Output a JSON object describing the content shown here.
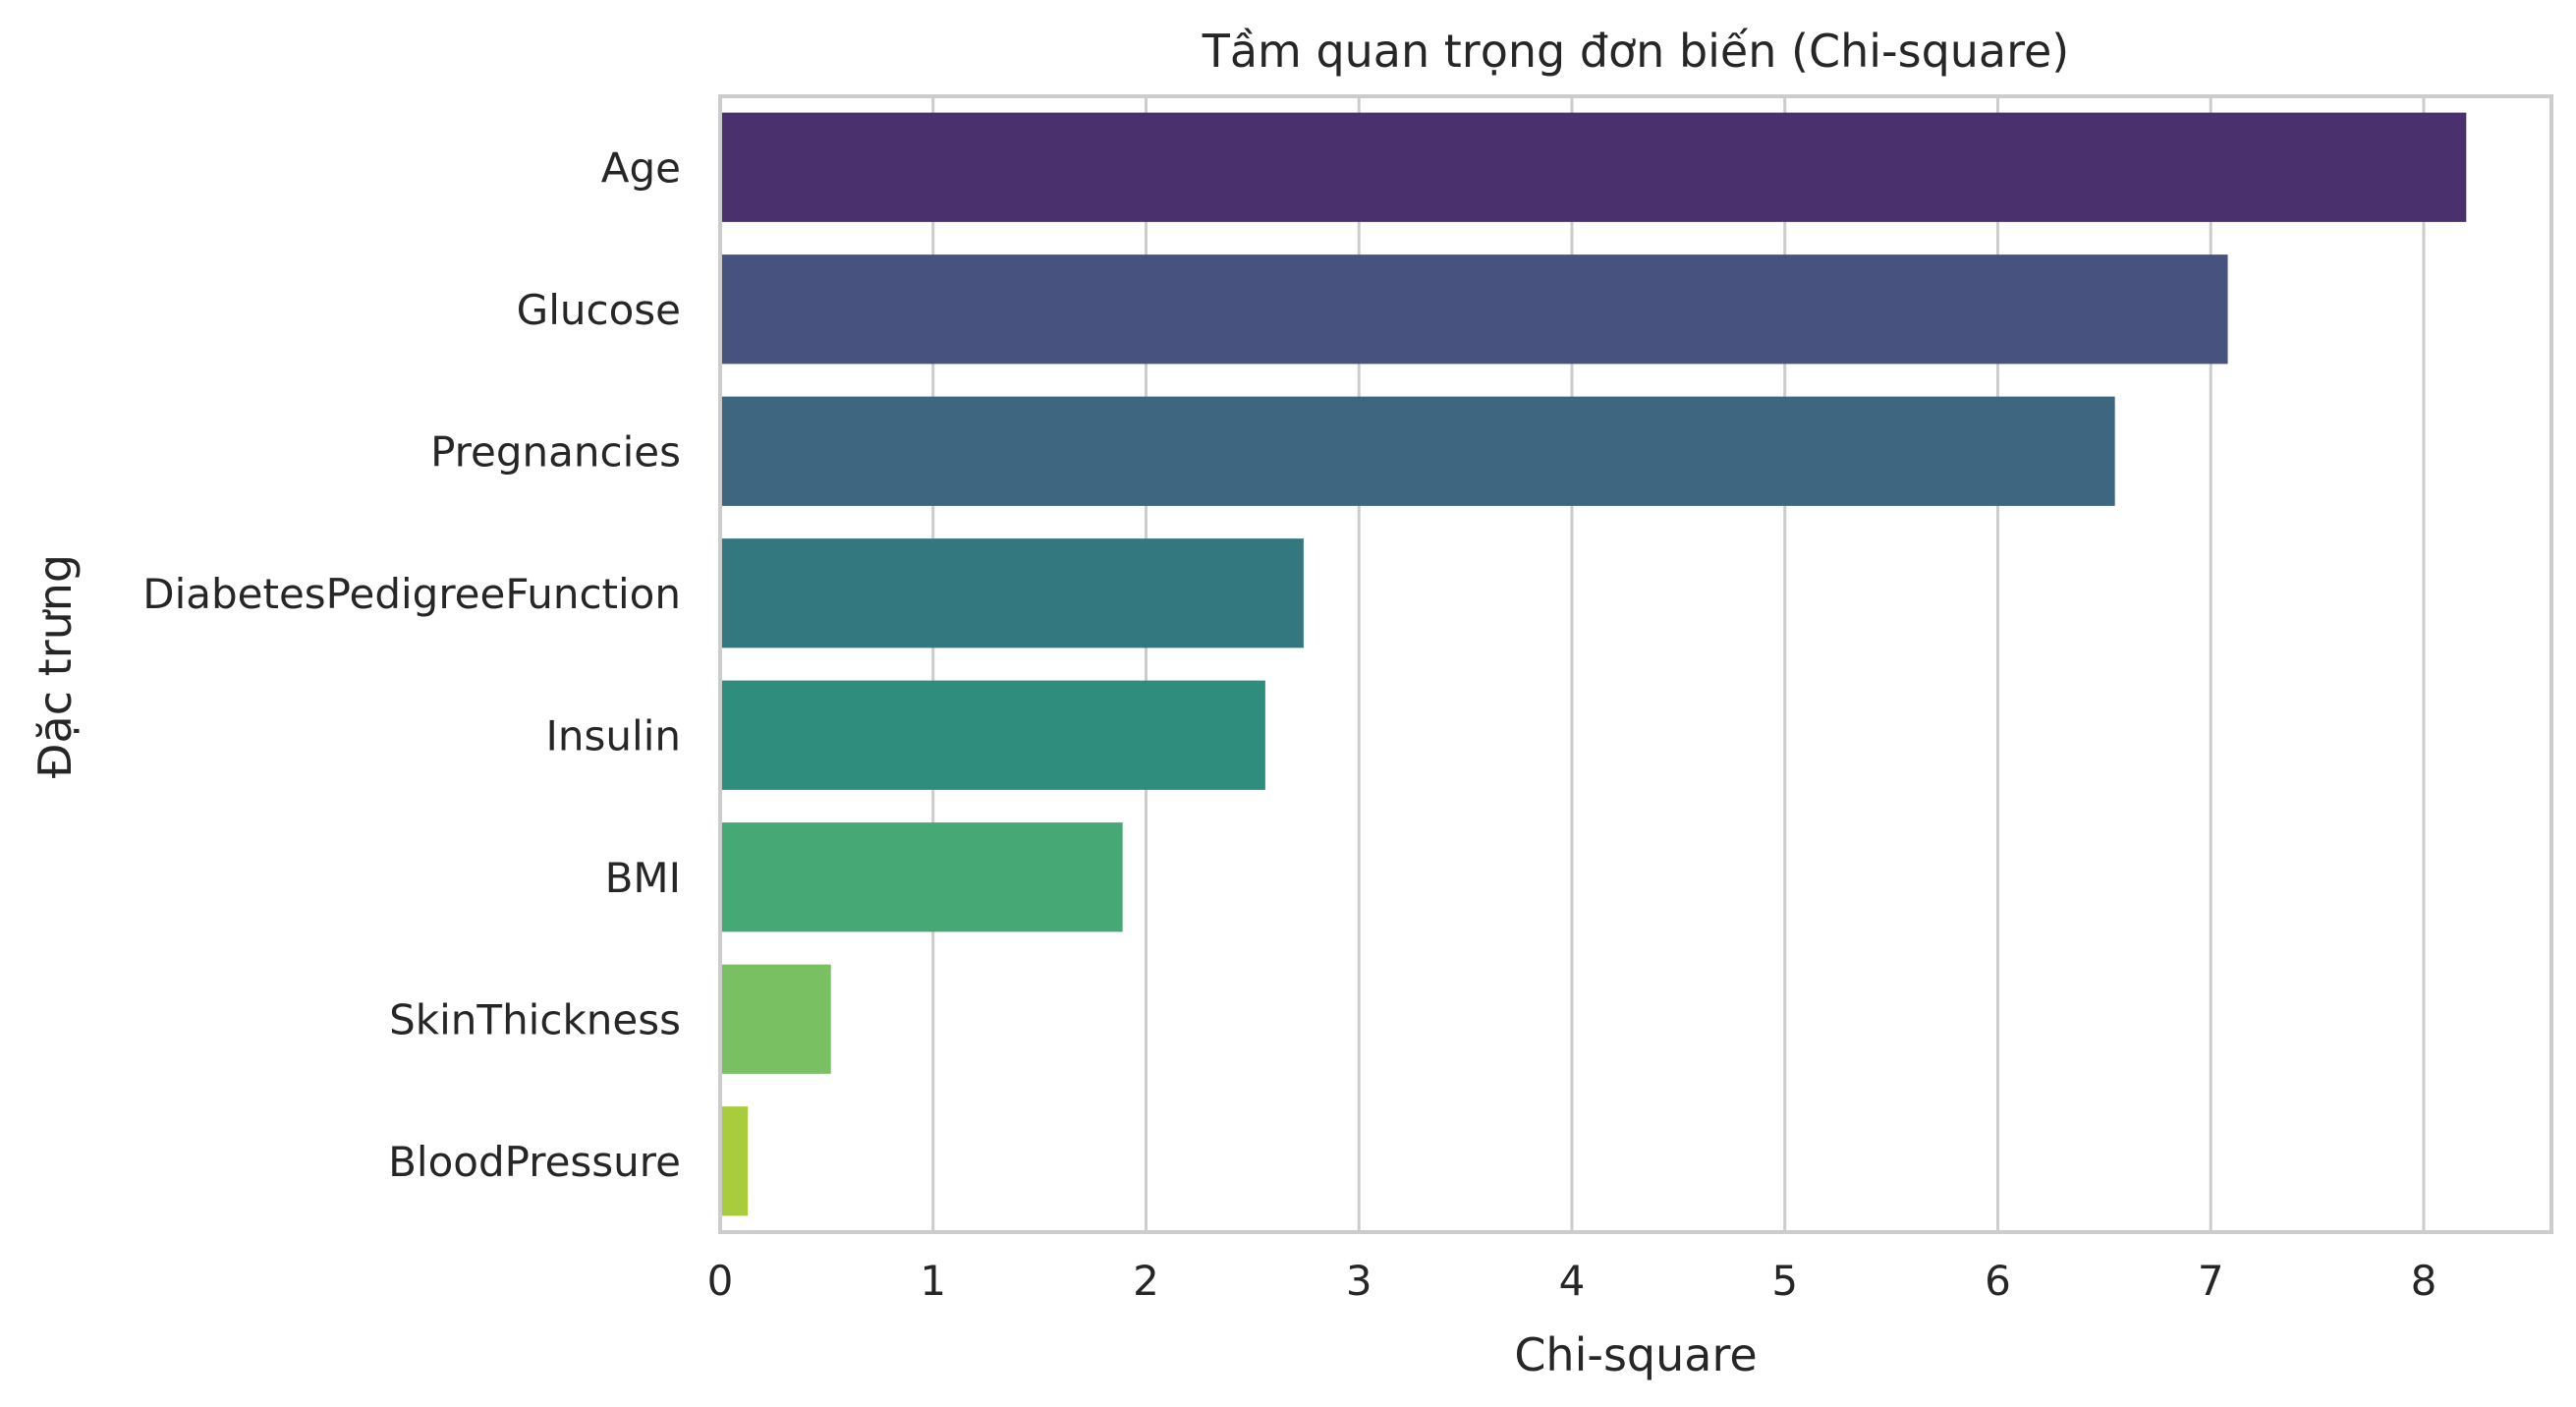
{
  "chart_data": {
    "type": "bar",
    "orientation": "horizontal",
    "title": "Tầm quan trọng đơn biến (Chi-square)",
    "xlabel": "Chi-square",
    "ylabel": "Đặc trưng",
    "xlim": [
      0,
      8.6
    ],
    "xticks": [
      0,
      1,
      2,
      3,
      4,
      5,
      6,
      7,
      8
    ],
    "grid": "vertical",
    "legend": "none",
    "categories": [
      "Age",
      "Glucose",
      "Pregnancies",
      "DiabetesPedigreeFunction",
      "Insulin",
      "BMI",
      "SkinThickness",
      "BloodPressure"
    ],
    "values": [
      8.2,
      7.08,
      6.55,
      2.74,
      2.56,
      1.89,
      0.52,
      0.13
    ],
    "colors": [
      "#4b306e",
      "#48527f",
      "#3f6681",
      "#33777f",
      "#2e8d7c",
      "#46a975",
      "#79c063",
      "#a9cc3c"
    ]
  }
}
